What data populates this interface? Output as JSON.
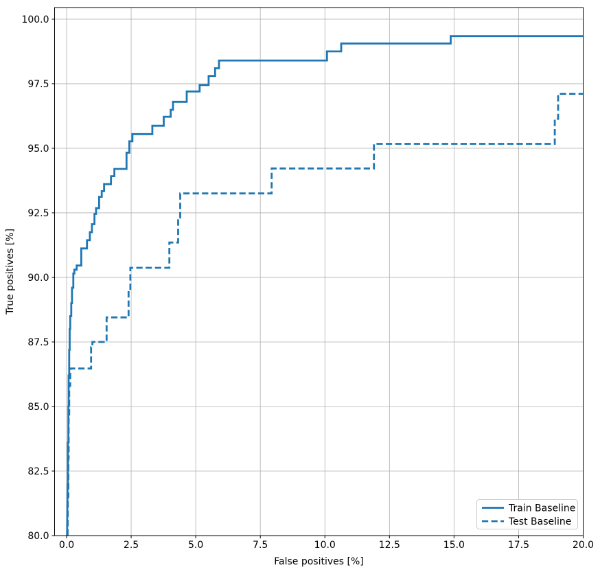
{
  "chart_data": {
    "type": "line",
    "title": "",
    "xlabel": "False positives [%]",
    "ylabel": "True positives [%]",
    "xlim": [
      -0.465,
      20.0
    ],
    "ylim": [
      80.0,
      100.45
    ],
    "xticks": [
      0.0,
      2.5,
      5.0,
      7.5,
      10.0,
      12.5,
      15.0,
      17.5,
      20.0
    ],
    "yticks": [
      80.0,
      82.5,
      85.0,
      87.5,
      90.0,
      92.5,
      95.0,
      97.5,
      100.0
    ],
    "tick_format_decimals": 1,
    "grid": true,
    "legend_position": "lower right",
    "colors": {
      "line": "#1f77b4",
      "grid": "#b0b0b0",
      "spine": "#000000",
      "text": "#000000",
      "legend_border": "#cccccc",
      "legend_bg": "#ffffff"
    },
    "series": [
      {
        "name": "Train Baseline",
        "style": "solid",
        "points": [
          [
            0.02,
            80.0
          ],
          [
            0.04,
            82.0
          ],
          [
            0.05,
            82.0
          ],
          [
            0.05,
            83.6
          ],
          [
            0.07,
            83.6
          ],
          [
            0.07,
            85.0
          ],
          [
            0.08,
            85.0
          ],
          [
            0.08,
            86.2
          ],
          [
            0.1,
            86.2
          ],
          [
            0.1,
            87.2
          ],
          [
            0.12,
            87.2
          ],
          [
            0.12,
            88.0
          ],
          [
            0.14,
            88.0
          ],
          [
            0.14,
            88.5
          ],
          [
            0.18,
            88.5
          ],
          [
            0.18,
            89.0
          ],
          [
            0.21,
            89.0
          ],
          [
            0.21,
            89.6
          ],
          [
            0.26,
            89.6
          ],
          [
            0.26,
            90.15
          ],
          [
            0.3,
            90.15
          ],
          [
            0.3,
            90.3
          ],
          [
            0.39,
            90.3
          ],
          [
            0.39,
            90.46
          ],
          [
            0.57,
            90.46
          ],
          [
            0.57,
            91.12
          ],
          [
            0.79,
            91.12
          ],
          [
            0.79,
            91.44
          ],
          [
            0.9,
            91.44
          ],
          [
            0.9,
            91.75
          ],
          [
            0.98,
            91.75
          ],
          [
            0.98,
            92.06
          ],
          [
            1.08,
            92.06
          ],
          [
            1.08,
            92.46
          ],
          [
            1.14,
            92.46
          ],
          [
            1.14,
            92.68
          ],
          [
            1.26,
            92.68
          ],
          [
            1.26,
            93.12
          ],
          [
            1.36,
            93.12
          ],
          [
            1.36,
            93.34
          ],
          [
            1.45,
            93.34
          ],
          [
            1.45,
            93.61
          ],
          [
            1.72,
            93.61
          ],
          [
            1.72,
            93.92
          ],
          [
            1.85,
            93.92
          ],
          [
            1.85,
            94.2
          ],
          [
            2.32,
            94.2
          ],
          [
            2.32,
            94.83
          ],
          [
            2.43,
            94.83
          ],
          [
            2.43,
            95.27
          ],
          [
            2.55,
            95.27
          ],
          [
            2.55,
            95.55
          ],
          [
            3.32,
            95.55
          ],
          [
            3.32,
            95.87
          ],
          [
            3.76,
            95.87
          ],
          [
            3.76,
            96.22
          ],
          [
            4.03,
            96.22
          ],
          [
            4.03,
            96.49
          ],
          [
            4.12,
            96.49
          ],
          [
            4.12,
            96.8
          ],
          [
            4.65,
            96.8
          ],
          [
            4.65,
            97.2
          ],
          [
            5.15,
            97.2
          ],
          [
            5.15,
            97.45
          ],
          [
            5.5,
            97.45
          ],
          [
            5.5,
            97.8
          ],
          [
            5.75,
            97.8
          ],
          [
            5.75,
            98.1
          ],
          [
            5.9,
            98.1
          ],
          [
            5.9,
            98.4
          ],
          [
            10.08,
            98.4
          ],
          [
            10.08,
            98.75
          ],
          [
            10.63,
            98.75
          ],
          [
            10.63,
            99.06
          ],
          [
            14.87,
            99.06
          ],
          [
            14.87,
            99.34
          ],
          [
            20.0,
            99.34
          ]
        ]
      },
      {
        "name": "Test Baseline",
        "style": "dashed",
        "points": [
          [
            0.04,
            80.0
          ],
          [
            0.05,
            81.5
          ],
          [
            0.07,
            81.5
          ],
          [
            0.07,
            83.0
          ],
          [
            0.08,
            83.0
          ],
          [
            0.08,
            84.6
          ],
          [
            0.1,
            84.6
          ],
          [
            0.1,
            85.8
          ],
          [
            0.14,
            85.8
          ],
          [
            0.14,
            86.47
          ],
          [
            0.95,
            86.47
          ],
          [
            0.95,
            87.3
          ],
          [
            1.0,
            87.3
          ],
          [
            1.0,
            87.5
          ],
          [
            1.55,
            87.5
          ],
          [
            1.55,
            88.45
          ],
          [
            2.4,
            88.45
          ],
          [
            2.4,
            89.5
          ],
          [
            2.47,
            89.5
          ],
          [
            2.47,
            90.37
          ],
          [
            3.98,
            90.37
          ],
          [
            3.98,
            91.35
          ],
          [
            4.32,
            91.35
          ],
          [
            4.32,
            92.32
          ],
          [
            4.4,
            92.32
          ],
          [
            4.4,
            93.25
          ],
          [
            7.94,
            93.25
          ],
          [
            7.94,
            94.22
          ],
          [
            11.9,
            94.22
          ],
          [
            11.9,
            95.17
          ],
          [
            18.9,
            95.17
          ],
          [
            18.9,
            96.14
          ],
          [
            19.03,
            96.14
          ],
          [
            19.03,
            97.11
          ],
          [
            20.0,
            97.11
          ]
        ]
      }
    ]
  }
}
